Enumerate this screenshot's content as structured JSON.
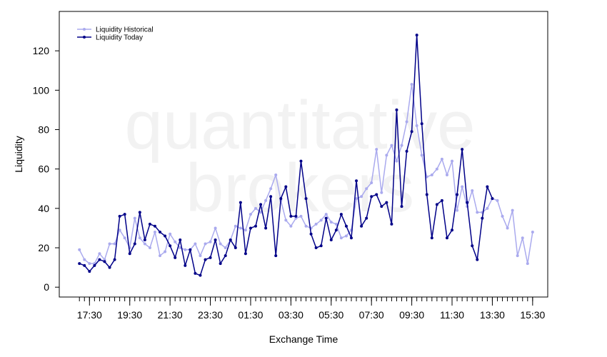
{
  "chart_data": {
    "type": "line",
    "title": "",
    "xlabel": "Exchange Time",
    "ylabel": "Liquidity",
    "ylim": [
      -5,
      140
    ],
    "yticks": [
      0,
      20,
      40,
      60,
      80,
      100,
      120
    ],
    "xtick_labels": [
      "17:30",
      "19:30",
      "21:30",
      "23:30",
      "01:30",
      "03:30",
      "05:30",
      "07:30",
      "09:30",
      "11:30",
      "13:30",
      "15:30"
    ],
    "xtick_label_positions": [
      2,
      10,
      18,
      26,
      34,
      42,
      50,
      58,
      66,
      74,
      82,
      90
    ],
    "minor_tick_count": 91,
    "xlim": [
      -4,
      93
    ],
    "grid": false,
    "legend_position": "top-left",
    "watermark": [
      "quantitative",
      "brokers"
    ],
    "series": [
      {
        "name": "Liquidity Historical",
        "color": "#aaaaee",
        "values": [
          19,
          14,
          12,
          12,
          17,
          14,
          22,
          22,
          29,
          25,
          20,
          35,
          25,
          22,
          20,
          28,
          16,
          18,
          27,
          23,
          20,
          19,
          19,
          22,
          16,
          22,
          23,
          30,
          22,
          20,
          24,
          31,
          30,
          29,
          37,
          40,
          38,
          44,
          50,
          57,
          44,
          34,
          31,
          35,
          36,
          31,
          30,
          32,
          34,
          37,
          33,
          32,
          25,
          26,
          29,
          45,
          46,
          50,
          53,
          70,
          48,
          67,
          72,
          64,
          72,
          84,
          103,
          82,
          67,
          56,
          57,
          60,
          65,
          57,
          64,
          39,
          51,
          41,
          49,
          38,
          38,
          40,
          45,
          44,
          36,
          30,
          39,
          16,
          25,
          12,
          28
        ]
      },
      {
        "name": "Liquidity Today",
        "color": "#000088",
        "values": [
          12,
          11,
          8,
          11,
          14,
          13,
          10,
          14,
          36,
          37,
          17,
          22,
          38,
          24,
          32,
          31,
          28,
          26,
          21,
          15,
          24,
          11,
          19,
          7,
          6,
          14,
          15,
          24,
          12,
          16,
          24,
          20,
          43,
          17,
          30,
          31,
          42,
          30,
          46,
          16,
          45,
          51,
          36,
          36,
          64,
          45,
          27,
          20,
          21,
          35,
          24,
          29,
          37,
          31,
          25,
          54,
          31,
          35,
          46,
          47,
          41,
          43,
          32,
          90,
          41,
          69,
          79,
          128,
          83,
          47,
          25,
          42,
          44,
          25,
          29,
          47,
          70,
          43,
          21,
          14,
          35,
          51,
          45
        ]
      }
    ]
  }
}
